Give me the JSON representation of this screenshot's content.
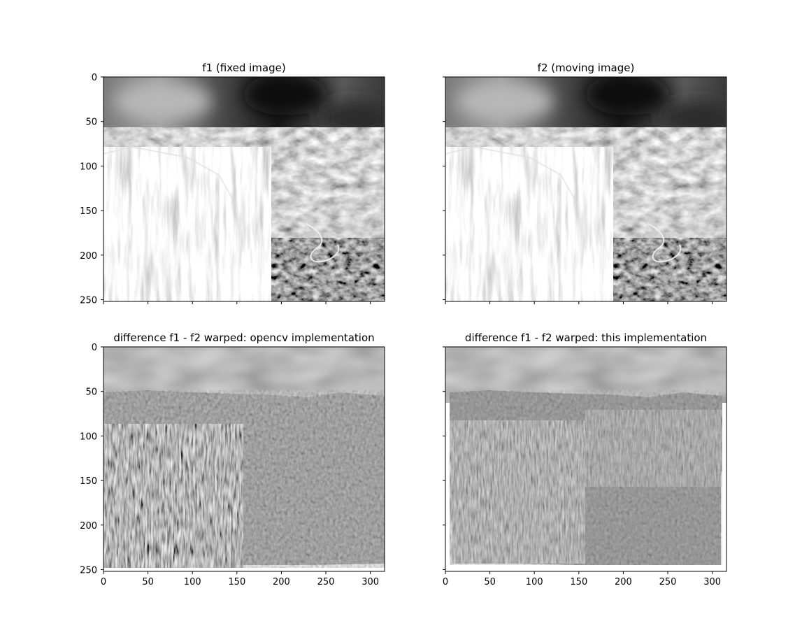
{
  "chart_data": [
    {
      "type": "image",
      "title": "f1 (fixed image)",
      "xlabel": "",
      "ylabel": "",
      "xlim": [
        0,
        316
      ],
      "ylim": [
        252,
        0
      ],
      "xticks": [
        0,
        50,
        100,
        150,
        200,
        250,
        300
      ],
      "yticks": [
        0,
        50,
        100,
        150,
        200,
        250
      ],
      "show_xtick_labels": false,
      "show_ytick_labels": true,
      "colormap": "gray",
      "content": "grayscale image"
    },
    {
      "type": "image",
      "title": "f2 (moving image)",
      "xlabel": "",
      "ylabel": "",
      "xlim": [
        0,
        316
      ],
      "ylim": [
        252,
        0
      ],
      "xticks": [
        0,
        50,
        100,
        150,
        200,
        250,
        300
      ],
      "yticks": [
        0,
        50,
        100,
        150,
        200,
        250
      ],
      "show_xtick_labels": false,
      "show_ytick_labels": false,
      "colormap": "gray",
      "content": "grayscale image"
    },
    {
      "type": "image",
      "title": "difference f1 - f2 warped: opencv implementation",
      "xlabel": "",
      "ylabel": "",
      "xlim": [
        0,
        316
      ],
      "ylim": [
        252,
        0
      ],
      "xticks": [
        0,
        50,
        100,
        150,
        200,
        250,
        300
      ],
      "yticks": [
        0,
        50,
        100,
        150,
        200,
        250
      ],
      "show_xtick_labels": true,
      "show_ytick_labels": true,
      "colormap": "gray",
      "content": "difference image"
    },
    {
      "type": "image",
      "title": "difference f1 - f2 warped: this implementation",
      "xlabel": "",
      "ylabel": "",
      "xlim": [
        0,
        316
      ],
      "ylim": [
        252,
        0
      ],
      "xticks": [
        0,
        50,
        100,
        150,
        200,
        250,
        300
      ],
      "yticks": [
        0,
        50,
        100,
        150,
        200,
        250
      ],
      "show_xtick_labels": true,
      "show_ytick_labels": false,
      "colormap": "gray",
      "content": "difference image"
    }
  ]
}
